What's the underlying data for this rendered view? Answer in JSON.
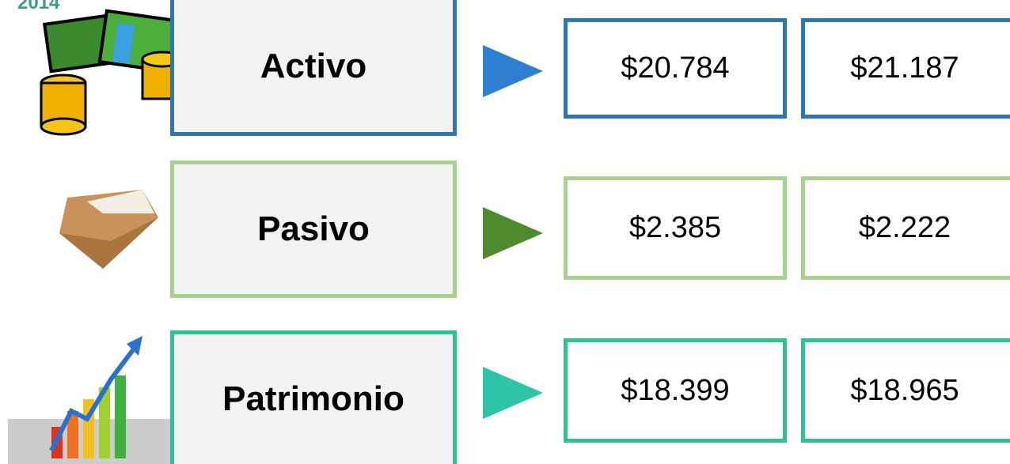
{
  "year": "2014",
  "rows": [
    {
      "label": "Activo",
      "values": [
        "$20.784",
        "$21.187"
      ]
    },
    {
      "label": "Pasivo",
      "values": [
        "$2.385",
        "$2.222"
      ]
    },
    {
      "label": "Patrimonio",
      "values": [
        "$18.399",
        "$18.965"
      ]
    }
  ]
}
